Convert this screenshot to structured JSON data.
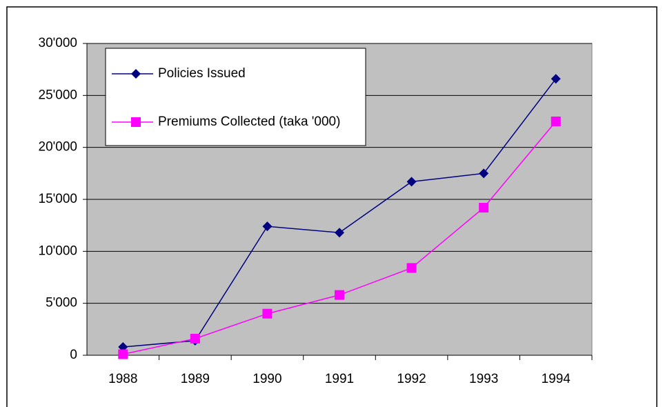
{
  "chart_data": {
    "type": "line",
    "categories": [
      "1988",
      "1989",
      "1990",
      "1991",
      "1992",
      "1993",
      "1994"
    ],
    "series": [
      {
        "name": "Policies Issued",
        "color": "#000080",
        "marker": "diamond",
        "values": [
          800,
          1400,
          12400,
          11800,
          16700,
          17500,
          26600
        ]
      },
      {
        "name": "Premiums Collected (taka '000)",
        "color": "#ff00ff",
        "marker": "square",
        "values": [
          100,
          1600,
          4000,
          5800,
          8400,
          14200,
          22500
        ]
      }
    ],
    "ylim": [
      0,
      30000
    ],
    "yticks": [
      0,
      {
        "value": 5000,
        "label": "5'000"
      },
      {
        "value": 10000,
        "label": "10'000"
      },
      {
        "value": 15000,
        "label": "15'000"
      },
      {
        "value": 20000,
        "label": "20'000"
      },
      {
        "value": 25000,
        "label": "25'000"
      },
      {
        "value": 30000,
        "label": "30'000"
      }
    ],
    "grid": true,
    "legend": "upper left",
    "plot_background": "#c0c0c0"
  }
}
